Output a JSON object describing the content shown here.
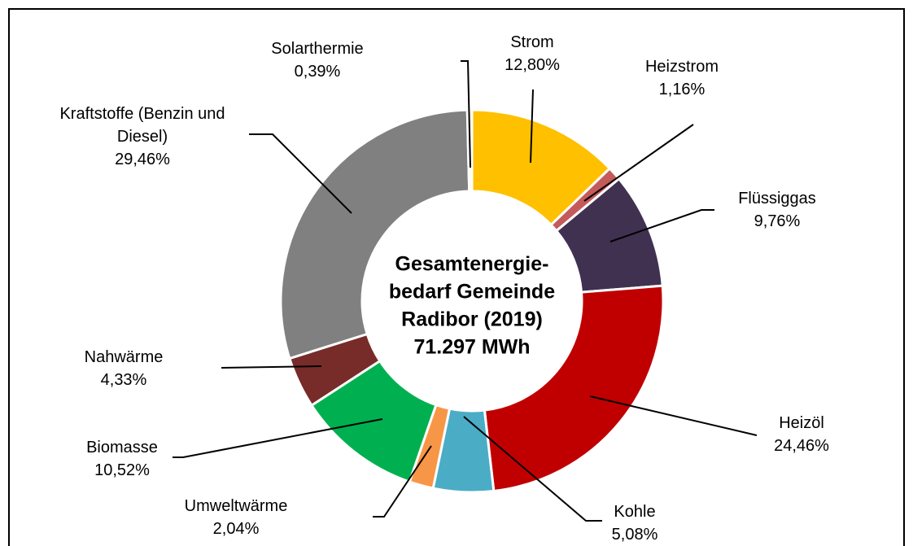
{
  "chart_data": {
    "type": "donut",
    "center_text": [
      "Gesamtenergie-",
      "bedarf Gemeinde",
      "Radibor (2019)",
      "71.297 MWh"
    ],
    "categories": [
      "Strom",
      "Heizstrom",
      "Flüssiggas",
      "Heizöl",
      "Kohle",
      "Umweltwärme",
      "Biomasse",
      "Nahwärme",
      "Kraftstoffe (Benzin und Diesel)",
      "Solarthermie"
    ],
    "values": [
      12.8,
      1.16,
      9.76,
      24.46,
      5.08,
      2.04,
      10.52,
      4.33,
      29.46,
      0.39
    ],
    "value_labels": [
      "12,80%",
      "1,16%",
      "9,76%",
      "24,46%",
      "5,08%",
      "2,04%",
      "10,52%",
      "4,33%",
      "29,46%",
      "0,39%"
    ],
    "colors": [
      "#FFC000",
      "#C55A5A",
      "#403151",
      "#C00000",
      "#4BACC6",
      "#F79646",
      "#00B050",
      "#772C2A",
      "#808080",
      "#FFF2CC"
    ]
  }
}
